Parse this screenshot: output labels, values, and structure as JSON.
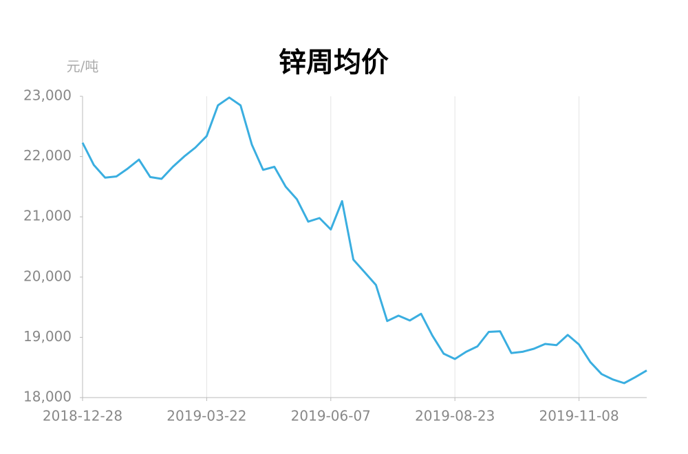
{
  "chart_data": {
    "type": "line",
    "title": "锌周均价",
    "y_unit": "元/吨",
    "categories": [
      "2018-12-28",
      null,
      null,
      null,
      null,
      null,
      null,
      null,
      null,
      null,
      null,
      "2019-03-22",
      null,
      null,
      null,
      null,
      null,
      null,
      null,
      null,
      null,
      null,
      "2019-06-07",
      null,
      null,
      null,
      null,
      null,
      null,
      null,
      null,
      null,
      null,
      "2019-08-23",
      null,
      null,
      null,
      null,
      null,
      null,
      null,
      null,
      null,
      null,
      "2019-11-08",
      null,
      null,
      null,
      null,
      null,
      null
    ],
    "series": [
      {
        "name": "锌周均价",
        "color": "#3aaee0",
        "values": [
          22230,
          21860,
          21650,
          21670,
          21800,
          21950,
          21660,
          21630,
          21830,
          22000,
          22150,
          22340,
          22850,
          22980,
          22850,
          22200,
          21780,
          21830,
          21500,
          21290,
          20920,
          20980,
          20790,
          21260,
          20290,
          20080,
          19870,
          19270,
          19360,
          19280,
          19390,
          19030,
          18730,
          18640,
          18760,
          18850,
          19090,
          19100,
          18740,
          18760,
          18810,
          18890,
          18870,
          19040,
          18880,
          18590,
          18390,
          18300,
          18240,
          18340,
          18450
        ]
      }
    ],
    "ylim": [
      18000,
      23000
    ],
    "yticks": [
      {
        "value": 18000,
        "label": "18,000"
      },
      {
        "value": 19000,
        "label": "19,000"
      },
      {
        "value": 20000,
        "label": "20,000"
      },
      {
        "value": 21000,
        "label": "21,000"
      },
      {
        "value": 22000,
        "label": "22,000"
      },
      {
        "value": 23000,
        "label": "23,000"
      }
    ],
    "grid": "x"
  }
}
